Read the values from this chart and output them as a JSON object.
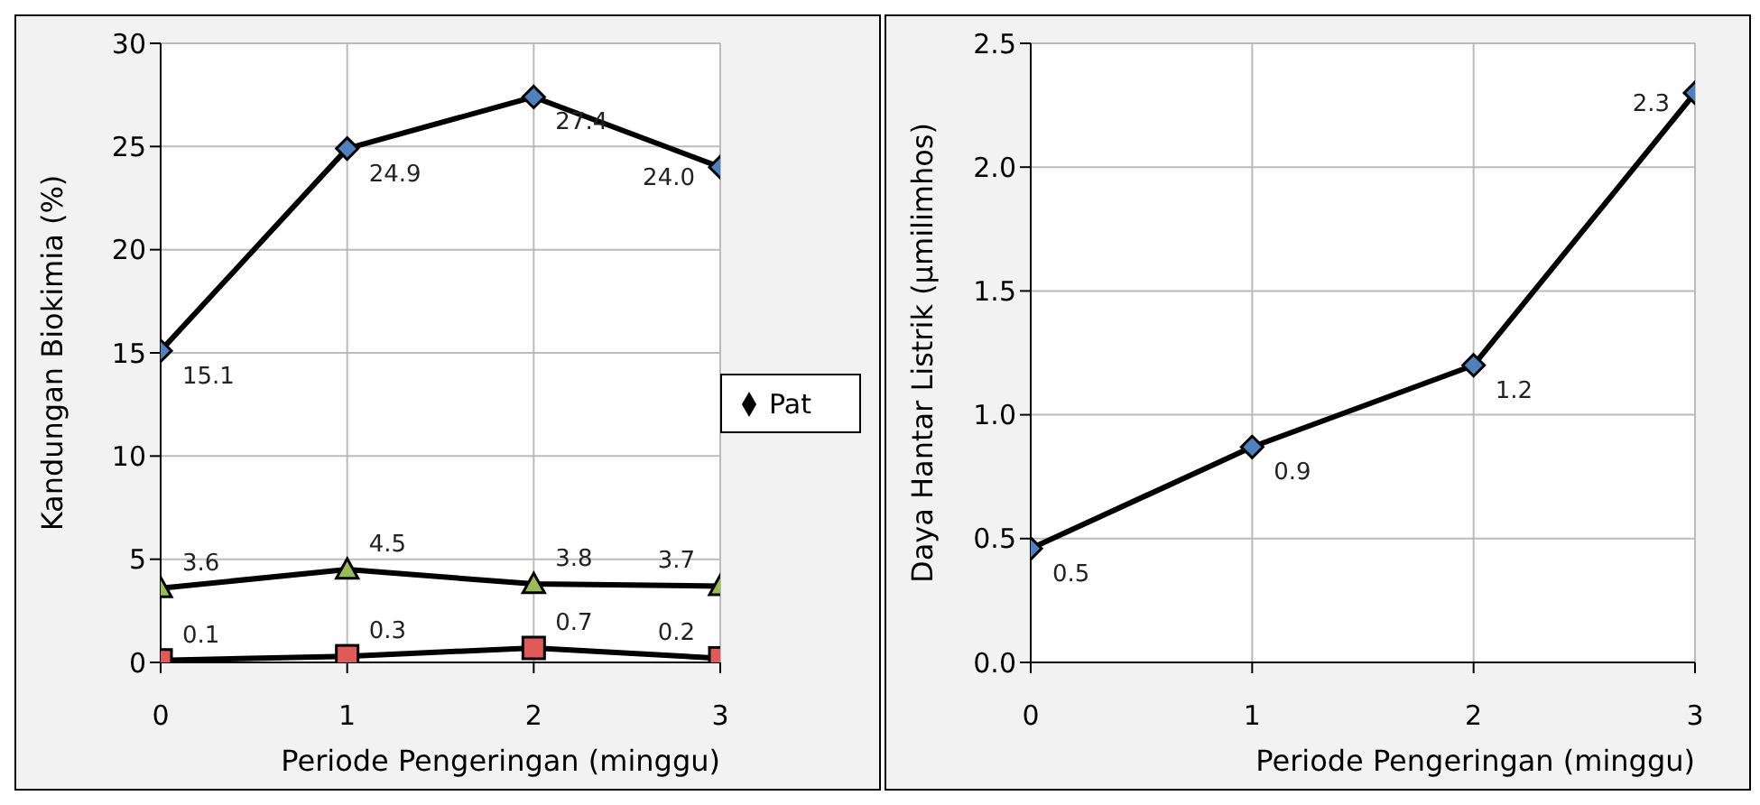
{
  "chart_data": [
    {
      "type": "line",
      "xlabel": "Periode  Pengeringan (minggu)",
      "ylabel": "Kandungan  Biokimia  (%)",
      "x": [
        0,
        1,
        2,
        3
      ],
      "xlim": [
        0,
        3
      ],
      "xticks": [
        0,
        1,
        2,
        3
      ],
      "ylim": [
        0,
        30
      ],
      "yticks": [
        0,
        5,
        10,
        15,
        20,
        25,
        30
      ],
      "grid": true,
      "legend": "right",
      "series": [
        {
          "name": "Pat",
          "color": "#4f81bd",
          "marker": "diamond",
          "values": [
            15.1,
            24.9,
            27.4,
            24.0
          ],
          "value_labels": [
            "15.1",
            "24.9",
            "27.4",
            "24.0"
          ]
        },
        {
          "color": "#9bbb59",
          "marker": "triangle",
          "values": [
            3.6,
            4.5,
            3.8,
            3.7
          ],
          "value_labels": [
            "3.6",
            "4.5",
            "3.8",
            "3.7"
          ]
        },
        {
          "color": "#e05a5a",
          "marker": "square",
          "values": [
            0.1,
            0.3,
            0.7,
            0.2
          ],
          "value_labels": [
            "0.1",
            "0.3",
            "0.7",
            "0.2"
          ]
        }
      ]
    },
    {
      "type": "line",
      "xlabel": "Periode  Pengeringan (minggu)",
      "ylabel": "Daya  Hantar  Listrik  (µmilimhos)",
      "x": [
        0,
        1,
        2,
        3
      ],
      "xlim": [
        0,
        3
      ],
      "xticks": [
        0,
        1,
        2,
        3
      ],
      "ylim": [
        0,
        2.5
      ],
      "yticks": [
        {
          "value": 0,
          "label": "0.0"
        },
        0.5,
        {
          "value": 1,
          "label": "1.0"
        },
        1.5,
        {
          "value": 2,
          "label": "2.0"
        },
        2.5
      ],
      "grid": true,
      "series": [
        {
          "color": "#4f81bd",
          "marker": "diamond",
          "values": [
            0.46,
            0.87,
            1.2,
            2.3
          ],
          "value_labels": [
            "0.5",
            "0.9",
            "1.2",
            "2.3"
          ]
        }
      ]
    }
  ]
}
